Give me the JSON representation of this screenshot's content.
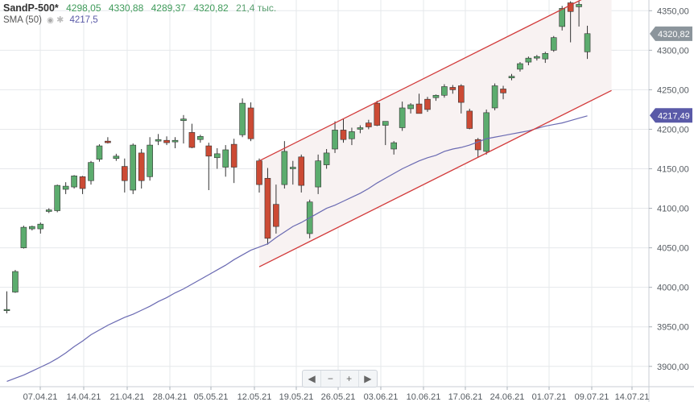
{
  "header": {
    "symbol": "SandP-500*",
    "open": "4298,05",
    "high": "4330,88",
    "low": "4289,37",
    "close": "4320,82",
    "volume": "21,4 тыс.",
    "sma_label": "SMA (50)",
    "sma_value": "4217,5"
  },
  "zoom_controls": {
    "left": "◀",
    "minus": "−",
    "plus": "+",
    "right": "▶"
  },
  "colors": {
    "up": "#5cac6e",
    "down": "#cc4a34",
    "sma": "#6a6ab2",
    "channel": "#d23a3a",
    "channel_fill": "#f8f2f2",
    "price_tag": "#8c959c",
    "sma_tag": "#5a5aa8"
  },
  "chart_data": {
    "type": "candlestick",
    "y_range": [
      3860,
      4385
    ],
    "y_ticks": [
      "3900,00",
      "3950,00",
      "4000,00",
      "4050,00",
      "4100,00",
      "4150,00",
      "4200,00",
      "4250,00",
      "4300,00",
      "4350,00"
    ],
    "y_tick_values": [
      3900,
      3950,
      4000,
      4050,
      4100,
      4150,
      4200,
      4250,
      4300,
      4350
    ],
    "x_ticks": [
      "07.04.21",
      "14.04.21",
      "21.04.21",
      "28.04.21",
      "05.05.21",
      "12.05.21",
      "19.05.21",
      "26.05.21",
      "03.06.21",
      "10.06.21",
      "17.06.21",
      "24.06.21",
      "01.07.21",
      "09.07.21",
      "14.07.21"
    ],
    "last_price_label": "4320,82",
    "sma_label": "4217,49",
    "candles": [
      {
        "o": 3971,
        "h": 3995,
        "l": 3967,
        "c": 3972
      },
      {
        "o": 3994,
        "h": 4022,
        "l": 3993,
        "c": 4020
      },
      {
        "o": 4050,
        "h": 4078,
        "l": 4049,
        "c": 4076
      },
      {
        "o": 4074,
        "h": 4078,
        "l": 4072,
        "c": 4077
      },
      {
        "o": 4074,
        "h": 4082,
        "l": 4068,
        "c": 4080
      },
      {
        "o": 4096,
        "h": 4100,
        "l": 4094,
        "c": 4098
      },
      {
        "o": 4097,
        "h": 4130,
        "l": 4095,
        "c": 4129
      },
      {
        "o": 4124,
        "h": 4133,
        "l": 4118,
        "c": 4128
      },
      {
        "o": 4127,
        "h": 4142,
        "l": 4125,
        "c": 4141
      },
      {
        "o": 4140,
        "h": 4141,
        "l": 4118,
        "c": 4125
      },
      {
        "o": 4135,
        "h": 4160,
        "l": 4130,
        "c": 4158
      },
      {
        "o": 4162,
        "h": 4181,
        "l": 4159,
        "c": 4179
      },
      {
        "o": 4185,
        "h": 4190,
        "l": 4182,
        "c": 4183
      },
      {
        "o": 4163,
        "h": 4169,
        "l": 4160,
        "c": 4166
      },
      {
        "o": 4153,
        "h": 4163,
        "l": 4120,
        "c": 4135
      },
      {
        "o": 4123,
        "h": 4182,
        "l": 4118,
        "c": 4180
      },
      {
        "o": 4170,
        "h": 4175,
        "l": 4125,
        "c": 4135
      },
      {
        "o": 4140,
        "h": 4190,
        "l": 4135,
        "c": 4180
      },
      {
        "o": 4185,
        "h": 4194,
        "l": 4180,
        "c": 4187
      },
      {
        "o": 4186,
        "h": 4191,
        "l": 4180,
        "c": 4183
      },
      {
        "o": 4184,
        "h": 4190,
        "l": 4176,
        "c": 4186
      },
      {
        "o": 4211,
        "h": 4218,
        "l": 4182,
        "c": 4213
      },
      {
        "o": 4196,
        "h": 4207,
        "l": 4176,
        "c": 4177
      },
      {
        "o": 4187,
        "h": 4193,
        "l": 4183,
        "c": 4191
      },
      {
        "o": 4179,
        "h": 4183,
        "l": 4123,
        "c": 4166
      },
      {
        "o": 4164,
        "h": 4176,
        "l": 4150,
        "c": 4169
      },
      {
        "o": 4152,
        "h": 4180,
        "l": 4140,
        "c": 4174
      },
      {
        "o": 4181,
        "h": 4188,
        "l": 4132,
        "c": 4152
      },
      {
        "o": 4193,
        "h": 4239,
        "l": 4190,
        "c": 4233
      },
      {
        "o": 4227,
        "h": 4234,
        "l": 4185,
        "c": 4188
      },
      {
        "o": 4160,
        "h": 4163,
        "l": 4120,
        "c": 4130
      },
      {
        "o": 4138,
        "h": 4151,
        "l": 4054,
        "c": 4062
      },
      {
        "o": 4105,
        "h": 4130,
        "l": 4068,
        "c": 4077
      },
      {
        "o": 4130,
        "h": 4185,
        "l": 4125,
        "c": 4172
      },
      {
        "o": 4150,
        "h": 4160,
        "l": 4130,
        "c": 4152
      },
      {
        "o": 4165,
        "h": 4168,
        "l": 4120,
        "c": 4129
      },
      {
        "o": 4068,
        "h": 4111,
        "l": 4062,
        "c": 4108
      },
      {
        "o": 4127,
        "h": 4168,
        "l": 4118,
        "c": 4160
      },
      {
        "o": 4155,
        "h": 4175,
        "l": 4150,
        "c": 4170
      },
      {
        "o": 4175,
        "h": 4210,
        "l": 4170,
        "c": 4199
      },
      {
        "o": 4199,
        "h": 4213,
        "l": 4183,
        "c": 4187
      },
      {
        "o": 4188,
        "h": 4202,
        "l": 4180,
        "c": 4197
      },
      {
        "o": 4200,
        "h": 4205,
        "l": 4195,
        "c": 4202
      },
      {
        "o": 4208,
        "h": 4212,
        "l": 4200,
        "c": 4203
      },
      {
        "o": 4233,
        "h": 4236,
        "l": 4204,
        "c": 4205
      },
      {
        "o": 4205,
        "h": 4210,
        "l": 4180,
        "c": 4210
      },
      {
        "o": 4175,
        "h": 4185,
        "l": 4168,
        "c": 4183
      },
      {
        "o": 4202,
        "h": 4235,
        "l": 4198,
        "c": 4227
      },
      {
        "o": 4226,
        "h": 4233,
        "l": 4220,
        "c": 4231
      },
      {
        "o": 4232,
        "h": 4245,
        "l": 4220,
        "c": 4220
      },
      {
        "o": 4238,
        "h": 4241,
        "l": 4222,
        "c": 4225
      },
      {
        "o": 4240,
        "h": 4244,
        "l": 4236,
        "c": 4243
      },
      {
        "o": 4243,
        "h": 4257,
        "l": 4240,
        "c": 4254
      },
      {
        "o": 4253,
        "h": 4256,
        "l": 4245,
        "c": 4250
      },
      {
        "o": 4255,
        "h": 4257,
        "l": 4220,
        "c": 4234
      },
      {
        "o": 4223,
        "h": 4226,
        "l": 4200,
        "c": 4201
      },
      {
        "o": 4187,
        "h": 4189,
        "l": 4164,
        "c": 4174
      },
      {
        "o": 4172,
        "h": 4225,
        "l": 4168,
        "c": 4221
      },
      {
        "o": 4227,
        "h": 4258,
        "l": 4224,
        "c": 4255
      },
      {
        "o": 4251,
        "h": 4255,
        "l": 4238,
        "c": 4246
      },
      {
        "o": 4265,
        "h": 4270,
        "l": 4262,
        "c": 4267
      },
      {
        "o": 4276,
        "h": 4285,
        "l": 4273,
        "c": 4283
      },
      {
        "o": 4285,
        "h": 4292,
        "l": 4281,
        "c": 4290
      },
      {
        "o": 4290,
        "h": 4294,
        "l": 4287,
        "c": 4292
      },
      {
        "o": 4289,
        "h": 4298,
        "l": 4284,
        "c": 4296
      },
      {
        "o": 4300,
        "h": 4318,
        "l": 4298,
        "c": 4316
      },
      {
        "o": 4330,
        "h": 4356,
        "l": 4325,
        "c": 4353
      },
      {
        "o": 4360,
        "h": 4362,
        "l": 4310,
        "c": 4349
      },
      {
        "o": 4355,
        "h": 4363,
        "l": 4330,
        "c": 4358
      },
      {
        "o": 4298,
        "h": 4331,
        "l": 4289,
        "c": 4321
      }
    ],
    "sma": [
      3881,
      3885,
      3889,
      3894,
      3899,
      3904,
      3910,
      3917,
      3925,
      3932,
      3940,
      3946,
      3952,
      3957,
      3962,
      3966,
      3971,
      3976,
      3982,
      3987,
      3993,
      3998,
      4004,
      4010,
      4016,
      4022,
      4028,
      4035,
      4041,
      4047,
      4051,
      4055,
      4063,
      4070,
      4077,
      4082,
      4088,
      4094,
      4100,
      4104,
      4109,
      4114,
      4119,
      4125,
      4132,
      4138,
      4144,
      4150,
      4155,
      4160,
      4164,
      4167,
      4172,
      4175,
      4177,
      4180,
      4184,
      4188,
      4190,
      4192,
      4194,
      4196,
      4198,
      4201,
      4204,
      4206,
      4208,
      4211,
      4214,
      4217
    ],
    "channel": {
      "upper": {
        "from": [
          30,
          4160
        ],
        "to": [
          69,
          4378
        ]
      },
      "lower": {
        "from": [
          30,
          4026
        ],
        "to": [
          69,
          4244
        ]
      }
    },
    "grid": true
  }
}
